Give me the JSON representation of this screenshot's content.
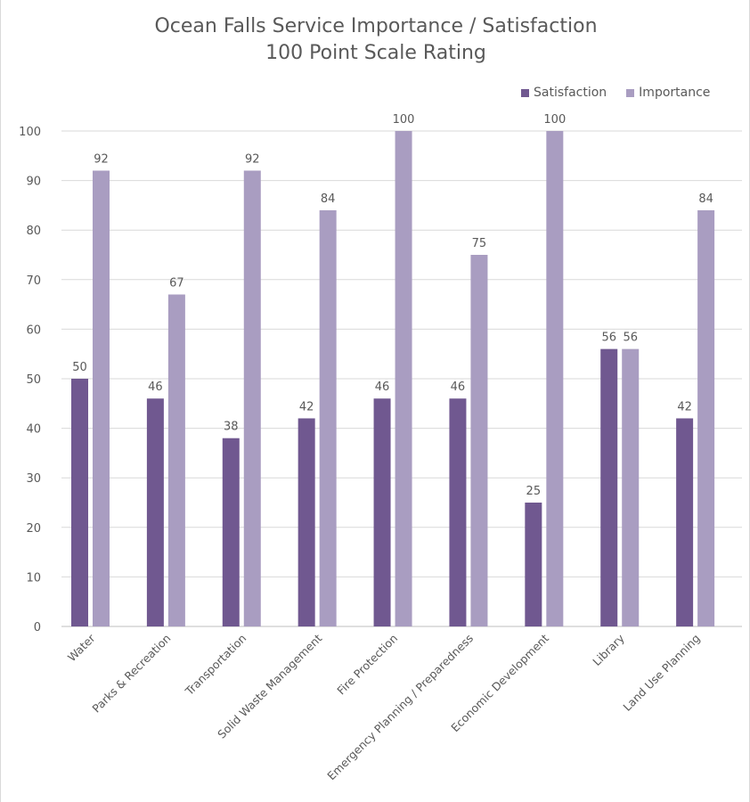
{
  "chart_data": {
    "type": "bar",
    "title": "Ocean Falls Service Importance / Satisfaction",
    "subtitle": "100 Point Scale Rating",
    "xlabel": "",
    "ylabel": "",
    "ylim": [
      0,
      100
    ],
    "yticks": [
      0,
      10,
      20,
      30,
      40,
      50,
      60,
      70,
      80,
      90,
      100
    ],
    "grid": true,
    "legend_position": "top-right",
    "categories": [
      "Water",
      "Parks & Recreation",
      "Transportation",
      "Solid Waste Management",
      "Fire Protection",
      "Emergency Planning / Preparedness",
      "Economic Development",
      "Library",
      "Land Use Planning"
    ],
    "series": [
      {
        "name": "Satisfaction",
        "color": "#705890",
        "values": [
          50,
          46,
          38,
          42,
          46,
          46,
          25,
          56,
          42
        ],
        "labels": [
          "50",
          "46",
          "38",
          "42",
          "46",
          "46",
          "25",
          "56",
          "42"
        ]
      },
      {
        "name": "Importance",
        "color": "#a99dc1",
        "values": [
          92,
          67,
          92,
          84,
          100,
          75,
          100,
          56,
          84
        ],
        "labels": [
          "92",
          "67",
          "92",
          "84",
          "100",
          "75",
          "100",
          "56",
          "84"
        ]
      }
    ]
  }
}
